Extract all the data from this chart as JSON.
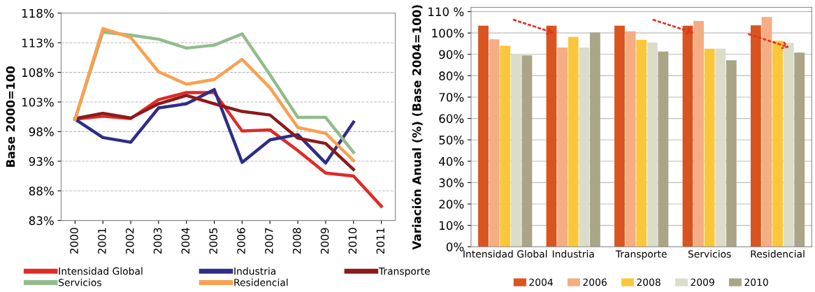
{
  "chart_data": [
    {
      "type": "line",
      "ylabel": "Base 2000=100",
      "categories": [
        "2000",
        "2001",
        "2002",
        "2003",
        "2004",
        "2005",
        "2006",
        "2007",
        "2008",
        "2009",
        "2010",
        "2011"
      ],
      "series": [
        {
          "name": "Intensidad Global",
          "color": "#e02a25",
          "values": [
            100.1,
            100.6,
            100.2,
            103.4,
            104.6,
            104.6,
            98.1,
            98.3,
            94.8,
            91.0,
            90.5,
            85.4
          ]
        },
        {
          "name": "Industria",
          "color": "#2e2d88",
          "values": [
            100.1,
            97.0,
            96.2,
            102.0,
            102.7,
            105.1,
            92.8,
            96.6,
            97.5,
            92.7,
            99.6,
            null
          ]
        },
        {
          "name": "Transporte",
          "color": "#8b1a1a",
          "values": [
            100.2,
            101.1,
            100.3,
            102.7,
            104.1,
            102.7,
            101.4,
            100.8,
            96.9,
            96.0,
            91.6,
            null
          ]
        },
        {
          "name": "Servicios",
          "color": "#93bb8c",
          "values": [
            100.1,
            114.8,
            114.3,
            113.6,
            112.1,
            112.6,
            114.5,
            107.6,
            100.4,
            100.4,
            94.5,
            null
          ]
        },
        {
          "name": "Residencial",
          "color": "#f9a04e",
          "values": [
            100.1,
            115.4,
            113.9,
            108.1,
            106.0,
            106.8,
            110.2,
            105.4,
            98.7,
            97.7,
            93.1,
            null
          ]
        }
      ],
      "ylim": [
        83,
        118
      ],
      "yticks": [
        {
          "value": 83,
          "label": "83%"
        },
        {
          "value": 88,
          "label": "88%"
        },
        {
          "value": 93,
          "label": "93%"
        },
        {
          "value": 98,
          "label": "98%"
        },
        {
          "value": 103,
          "label": "103%"
        },
        {
          "value": 108,
          "label": "108%"
        },
        {
          "value": 113,
          "label": "113%"
        },
        {
          "value": 118,
          "label": "118%"
        }
      ],
      "grid": "y",
      "line_style": "solid",
      "legend": "bottom"
    },
    {
      "type": "bar",
      "ylabel": "Variación Anual (%) (Base 2004=100)",
      "categories": [
        "Intensidad Global",
        "Industria",
        "Transporte",
        "Servicios",
        "Residencial"
      ],
      "series": [
        {
          "name": "2004",
          "color": "#d9541e",
          "values": [
            103.4,
            103.4,
            103.4,
            103.4,
            103.6
          ]
        },
        {
          "name": "2006",
          "color": "#f5ad84",
          "values": [
            97.0,
            93.2,
            100.8,
            105.6,
            107.5
          ]
        },
        {
          "name": "2008",
          "color": "#fbc73a",
          "values": [
            94.0,
            98.2,
            96.8,
            92.6,
            96.4
          ]
        },
        {
          "name": "2009",
          "color": "#dcdccb",
          "values": [
            90.2,
            93.2,
            95.6,
            92.6,
            95.4
          ]
        },
        {
          "name": "2010",
          "color": "#a9a586",
          "values": [
            89.5,
            100.2,
            91.3,
            87.2,
            90.8
          ]
        }
      ],
      "ylim": [
        0,
        112
      ],
      "yticks": [
        {
          "value": 0,
          "label": "0%"
        },
        {
          "value": 10,
          "label": "10%"
        },
        {
          "value": 20,
          "label": "20%"
        },
        {
          "value": 30,
          "label": "30%"
        },
        {
          "value": 40,
          "label": "40%"
        },
        {
          "value": 50,
          "label": "50%"
        },
        {
          "value": 60,
          "label": "60%"
        },
        {
          "value": 70,
          "label": "70%"
        },
        {
          "value": 80,
          "label": "80%"
        },
        {
          "value": 90,
          "label": "90%"
        },
        {
          "value": 100,
          "label": "100%"
        },
        {
          "value": 110,
          "label": "110 %"
        }
      ],
      "grid": "y",
      "legend": "bottom"
    }
  ]
}
